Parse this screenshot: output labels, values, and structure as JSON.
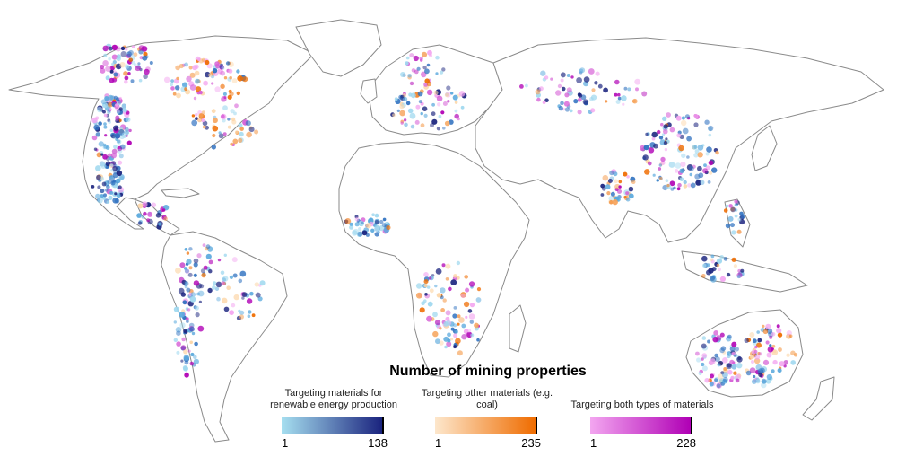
{
  "legend": {
    "title": "Number of mining properties",
    "items": [
      {
        "label": "Targeting materials for renewable energy production",
        "min": "1",
        "max": "138",
        "color_start": "#a6dff0",
        "color_end": "#1a237e"
      },
      {
        "label": "Targeting other materials (e.g. coal)",
        "min": "1",
        "max": "235",
        "color_start": "#fde7cc",
        "color_end": "#ef6c00"
      },
      {
        "label": "Targeting both types of materials",
        "min": "1",
        "max": "228",
        "color_start": "#f3a6f0",
        "color_end": "#b000b5"
      }
    ]
  },
  "map_colors": {
    "renewable": [
      "#9fd8ef",
      "#5aa9dd",
      "#2c6fbf",
      "#1a237e"
    ],
    "other": [
      "#fcd6a8",
      "#f6a35a",
      "#ef6c00"
    ],
    "both": [
      "#f3a6f0",
      "#d65fd6",
      "#b000b5"
    ],
    "land_stroke": "#8a8a8a"
  }
}
